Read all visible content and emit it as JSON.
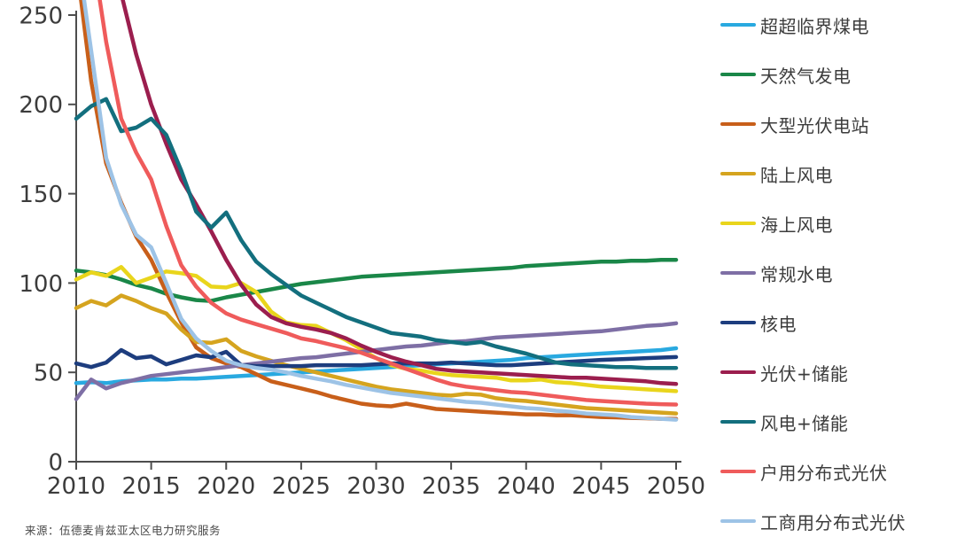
{
  "source_note": "来源：伍德麦肯兹亚太区电力研究服务",
  "chart_data": {
    "type": "line",
    "title": "",
    "xlabel": "",
    "ylabel": "",
    "x_start": 2010,
    "x_end": 2050,
    "x_step": 1,
    "xticks": [
      2010,
      2015,
      2020,
      2025,
      2030,
      2035,
      2040,
      2045,
      2050
    ],
    "ylim": [
      0,
      250
    ],
    "yticks": [
      0,
      50,
      100,
      150,
      200,
      250
    ],
    "grid": false,
    "legend_position": "right",
    "axis_color": "#4d4d4d",
    "tick_label_color": "#3c3c3c",
    "series": [
      {
        "name": "超超临界煤电",
        "color": "#29A9E0",
        "values": [
          44,
          44.5,
          44,
          45,
          45.5,
          46,
          46,
          46.5,
          46.5,
          47,
          47.5,
          48,
          48.5,
          49,
          49.5,
          50,
          50.5,
          51,
          51.5,
          52,
          52.5,
          53,
          53.5,
          54,
          54.5,
          55,
          55.5,
          56,
          56.5,
          57,
          58,
          58.5,
          59,
          59.5,
          60,
          60.5,
          61,
          61.5,
          62,
          62.5,
          63.5
        ]
      },
      {
        "name": "天然气发电",
        "color": "#1A8748",
        "values": [
          107,
          106,
          104.5,
          102,
          99,
          97,
          94,
          92,
          90.5,
          90,
          92,
          93.5,
          95,
          96.5,
          98,
          99.5,
          100.5,
          101.5,
          102.5,
          103.5,
          104,
          104.5,
          105,
          105.5,
          106,
          106.5,
          107,
          107.5,
          108,
          108.5,
          109.5,
          110,
          110.5,
          111,
          111.5,
          112,
          112,
          112.5,
          112.5,
          113,
          113
        ]
      },
      {
        "name": "大型光伏电站",
        "color": "#C85F1A",
        "values": [
          280,
          213,
          167,
          145,
          126,
          113,
          95,
          78,
          64,
          58,
          55,
          53,
          49,
          45,
          43,
          41,
          39,
          36.5,
          34.5,
          32.5,
          31.5,
          31,
          32.5,
          31,
          29.5,
          29,
          28.5,
          28,
          27.5,
          27,
          26.5,
          26.5,
          26,
          26,
          25.5,
          25,
          24.8,
          24.5,
          24.3,
          24,
          24
        ]
      },
      {
        "name": "陆上风电",
        "color": "#D5A41F",
        "values": [
          86,
          90,
          87.5,
          93,
          90,
          86,
          83,
          74,
          67,
          66.5,
          68.5,
          62,
          59,
          56.5,
          54,
          52,
          50,
          48,
          46,
          44,
          42,
          40.5,
          39.5,
          38.5,
          37.5,
          37,
          38,
          37.5,
          35.5,
          34.5,
          34,
          33,
          32,
          31,
          30,
          29.5,
          29,
          28.5,
          28,
          27.5,
          27
        ]
      },
      {
        "name": "海上风电",
        "color": "#E9D51C",
        "values": [
          102,
          106,
          104,
          109,
          100,
          103,
          106.5,
          105.5,
          104,
          98,
          97.5,
          100,
          95,
          84,
          78,
          76.5,
          76,
          72,
          68,
          63,
          58,
          54,
          52,
          51,
          49.5,
          48.5,
          48,
          47.5,
          47,
          45.5,
          45.5,
          46,
          44.5,
          44,
          43,
          42,
          41.5,
          41,
          40.5,
          40,
          39.5
        ]
      },
      {
        "name": "常规水电",
        "color": "#7E6FA5",
        "values": [
          35,
          46,
          41,
          44,
          46,
          48,
          49,
          50,
          51,
          52,
          53,
          54,
          55,
          56,
          57,
          58,
          58.5,
          59.5,
          60.5,
          61.5,
          62.5,
          63.5,
          64.5,
          65,
          66,
          67,
          67.5,
          68.5,
          69.5,
          70,
          70.5,
          71,
          71.5,
          72,
          72.5,
          73,
          74,
          75,
          76,
          76.5,
          77.5
        ]
      },
      {
        "name": "核电",
        "color": "#1D3D7E",
        "values": [
          55,
          53,
          55.5,
          62.5,
          58,
          59,
          54.5,
          57,
          59.5,
          58.5,
          61.5,
          54,
          53.5,
          53.5,
          53.5,
          53.5,
          54,
          54,
          54,
          54,
          54.5,
          55,
          55,
          55,
          55,
          55.5,
          55,
          54.5,
          54,
          54,
          54.5,
          55,
          55.5,
          56,
          56.5,
          57,
          57.3,
          57.6,
          58,
          58.3,
          58.6
        ]
      },
      {
        "name": "光伏+储能",
        "color": "#9B1E4E",
        "values": [
          292,
          282,
          272,
          262,
          228,
          200,
          178,
          158,
          144,
          129,
          113,
          99,
          88,
          81,
          77.5,
          75.5,
          74,
          72,
          69,
          65,
          61.5,
          58.5,
          56,
          54,
          52,
          51,
          50.5,
          50,
          49.5,
          49,
          48.5,
          48,
          47.5,
          47,
          47,
          46.5,
          46,
          45.5,
          45,
          44,
          43.5
        ]
      },
      {
        "name": "风电+储能",
        "color": "#136F7E",
        "values": [
          192,
          199,
          203,
          185,
          187,
          192,
          183,
          163,
          140,
          131,
          139.5,
          124,
          112,
          105,
          99,
          93,
          89,
          85,
          81,
          78,
          75,
          72,
          71,
          70,
          68,
          67,
          66,
          67,
          64.5,
          62.5,
          60.5,
          58,
          55.5,
          54.5,
          54,
          53.5,
          53,
          53,
          52.5,
          52.5,
          52.5
        ]
      },
      {
        "name": "户用分布式光伏",
        "color": "#EF5B5B",
        "values": [
          340,
          290,
          235,
          192,
          173,
          158,
          132,
          110,
          98,
          89,
          83,
          79.5,
          77,
          74.5,
          72,
          69,
          67.5,
          65.5,
          63.5,
          61,
          58,
          55,
          52,
          49,
          46,
          43.5,
          42,
          41,
          40,
          39,
          38.5,
          37.5,
          36.5,
          35.5,
          34.5,
          34,
          33.5,
          33,
          32.5,
          32.2,
          32
        ]
      },
      {
        "name": "工商用分布式光伏",
        "color": "#9DC3E6",
        "values": [
          290,
          230,
          170,
          144,
          127,
          120,
          100,
          80,
          69,
          62,
          56.5,
          54,
          52.5,
          51.5,
          50,
          48,
          46.5,
          45,
          43,
          41.5,
          40,
          38.5,
          37.5,
          36.5,
          35.5,
          34.5,
          33.5,
          33,
          32,
          31,
          30,
          29.5,
          28.5,
          28,
          27,
          26.5,
          26,
          25,
          24.5,
          24,
          23.5
        ]
      }
    ]
  }
}
